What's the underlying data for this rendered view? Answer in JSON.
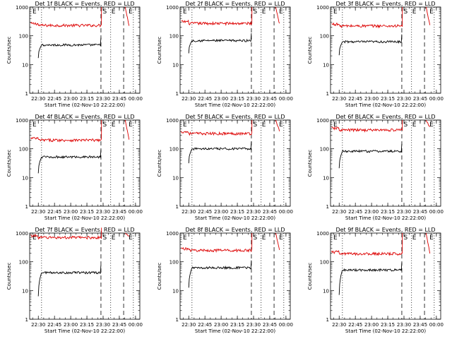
{
  "chart_data": {
    "type": "line",
    "shared_x_axis": {
      "label": "Start Time (02-Nov-10 22:22:00)",
      "tick_labels": [
        "22:30",
        "22:45",
        "23:00",
        "23:15",
        "23:30",
        "23:45",
        "00:00"
      ],
      "tick_minutes": [
        8,
        23,
        38,
        53,
        68,
        83,
        98
      ],
      "range_minutes": [
        0,
        102
      ]
    },
    "shared_y_axis": {
      "label": "Counts/sec",
      "scale": "log",
      "range": [
        1,
        1000
      ],
      "tick_labels": [
        "1",
        "10",
        "100",
        "1000"
      ],
      "tick_values": [
        1,
        10,
        100,
        1000
      ]
    },
    "markers": {
      "dotted_minutes": [
        11,
        75,
        96
      ],
      "dashed_minutes": [
        66,
        87
      ],
      "letters": [
        {
          "text": "E",
          "minute": 2
        },
        {
          "text": "S",
          "minute": 67
        },
        {
          "text": "E",
          "minute": 75
        },
        {
          "text": "E",
          "minute": 91
        }
      ]
    },
    "series_colors": {
      "events": "#000000",
      "lld": "#dd0000"
    },
    "panels": [
      {
        "title": "Det 1f BLACK = Events, RED = LLD",
        "lld_level": 230,
        "events_level": 48,
        "events_start": 24,
        "lld_end": 230,
        "letters": [
          "E",
          "S",
          "E",
          "E"
        ]
      },
      {
        "title": "Det 2f BLACK = Events, RED = LLD",
        "lld_level": 270,
        "events_level": 68,
        "events_start": 35,
        "lld_end": 260,
        "letters": [
          "E",
          "S",
          "E",
          "E"
        ]
      },
      {
        "title": "Det 3f BLACK = Events, RED = LLD",
        "lld_level": 220,
        "events_level": 62,
        "events_start": 30,
        "lld_end": 230,
        "letters": [
          "E",
          "S",
          "E",
          "E"
        ]
      },
      {
        "title": "Det 4f BLACK = Events, RED = LLD",
        "lld_level": 200,
        "events_level": 52,
        "events_start": 20,
        "lld_end": 210,
        "letters": [
          "E",
          "S",
          "E",
          "E"
        ]
      },
      {
        "title": "Det 5f BLACK = Events, RED = LLD",
        "lld_level": 340,
        "events_level": 100,
        "events_start": 45,
        "lld_end": 420,
        "letters": [
          "E",
          "S",
          "E",
          "E"
        ]
      },
      {
        "title": "Det 6f BLACK = Events, RED = LLD",
        "lld_level": 450,
        "events_level": 82,
        "events_start": 30,
        "lld_end": 560,
        "letters": [
          "E",
          "S",
          "E",
          "E"
        ]
      },
      {
        "title": "Det 7f BLACK = Events, RED = LLD",
        "lld_level": 700,
        "events_level": 42,
        "events_start": 9,
        "lld_end": 760,
        "letters": [
          "E",
          "S",
          "E",
          "E"
        ]
      },
      {
        "title": "Det 8f BLACK = Events, RED = LLD",
        "lld_level": 250,
        "events_level": 62,
        "events_start": 18,
        "lld_end": 260,
        "letters": [
          "E",
          "S",
          "E",
          "E"
        ]
      },
      {
        "title": "Det 9f BLACK = Events, RED = LLD",
        "lld_level": 190,
        "events_level": 52,
        "events_start": 10,
        "lld_end": 200,
        "letters": [
          "E",
          "S",
          "E",
          "E"
        ]
      }
    ]
  }
}
